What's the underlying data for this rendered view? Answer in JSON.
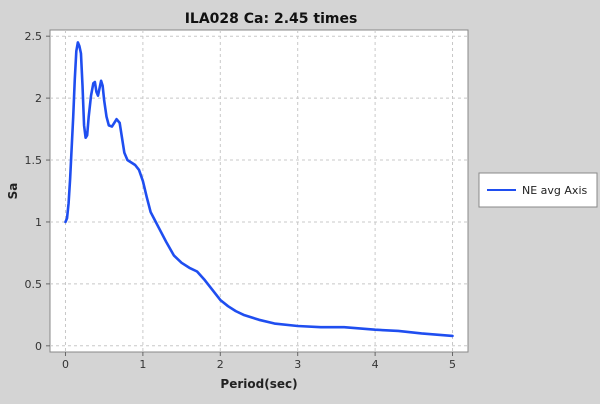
{
  "chart_data": {
    "type": "line",
    "title": "ILA028 Ca: 2.45 times",
    "xlabel": "Period(sec)",
    "ylabel": "Sa",
    "xlim": [
      -0.2,
      5.2
    ],
    "ylim": [
      -0.05,
      2.55
    ],
    "x_ticks": [
      0,
      1,
      2,
      3,
      4,
      5
    ],
    "y_ticks": [
      0,
      0.5,
      1,
      1.5,
      2,
      2.5
    ],
    "x_tick_labels": [
      "0",
      "1",
      "2",
      "3",
      "4",
      "5"
    ],
    "y_tick_labels": [
      "0",
      "0.5",
      "1",
      "1.5",
      "2",
      "2.5"
    ],
    "grid": true,
    "legend_position": "right",
    "series": [
      {
        "name": "NE avg Axis",
        "color": "#1f4ef0",
        "points": [
          [
            0.0,
            1.0
          ],
          [
            0.02,
            1.03
          ],
          [
            0.04,
            1.15
          ],
          [
            0.06,
            1.35
          ],
          [
            0.08,
            1.6
          ],
          [
            0.1,
            1.85
          ],
          [
            0.12,
            2.15
          ],
          [
            0.14,
            2.38
          ],
          [
            0.16,
            2.45
          ],
          [
            0.18,
            2.42
          ],
          [
            0.2,
            2.36
          ],
          [
            0.22,
            2.1
          ],
          [
            0.24,
            1.78
          ],
          [
            0.26,
            1.68
          ],
          [
            0.28,
            1.7
          ],
          [
            0.3,
            1.85
          ],
          [
            0.33,
            2.02
          ],
          [
            0.36,
            2.12
          ],
          [
            0.38,
            2.13
          ],
          [
            0.4,
            2.05
          ],
          [
            0.42,
            2.02
          ],
          [
            0.44,
            2.08
          ],
          [
            0.46,
            2.14
          ],
          [
            0.48,
            2.1
          ],
          [
            0.5,
            1.98
          ],
          [
            0.53,
            1.85
          ],
          [
            0.56,
            1.78
          ],
          [
            0.6,
            1.77
          ],
          [
            0.63,
            1.8
          ],
          [
            0.66,
            1.83
          ],
          [
            0.7,
            1.8
          ],
          [
            0.73,
            1.68
          ],
          [
            0.76,
            1.56
          ],
          [
            0.8,
            1.5
          ],
          [
            0.85,
            1.48
          ],
          [
            0.9,
            1.46
          ],
          [
            0.95,
            1.42
          ],
          [
            1.0,
            1.33
          ],
          [
            1.05,
            1.2
          ],
          [
            1.1,
            1.08
          ],
          [
            1.15,
            1.02
          ],
          [
            1.2,
            0.96
          ],
          [
            1.3,
            0.84
          ],
          [
            1.4,
            0.73
          ],
          [
            1.5,
            0.67
          ],
          [
            1.6,
            0.63
          ],
          [
            1.7,
            0.6
          ],
          [
            1.8,
            0.53
          ],
          [
            1.9,
            0.45
          ],
          [
            2.0,
            0.37
          ],
          [
            2.1,
            0.32
          ],
          [
            2.2,
            0.28
          ],
          [
            2.3,
            0.25
          ],
          [
            2.5,
            0.21
          ],
          [
            2.7,
            0.18
          ],
          [
            3.0,
            0.16
          ],
          [
            3.3,
            0.15
          ],
          [
            3.6,
            0.15
          ],
          [
            4.0,
            0.13
          ],
          [
            4.3,
            0.12
          ],
          [
            4.6,
            0.1
          ],
          [
            4.8,
            0.09
          ],
          [
            5.0,
            0.08
          ]
        ]
      }
    ]
  }
}
